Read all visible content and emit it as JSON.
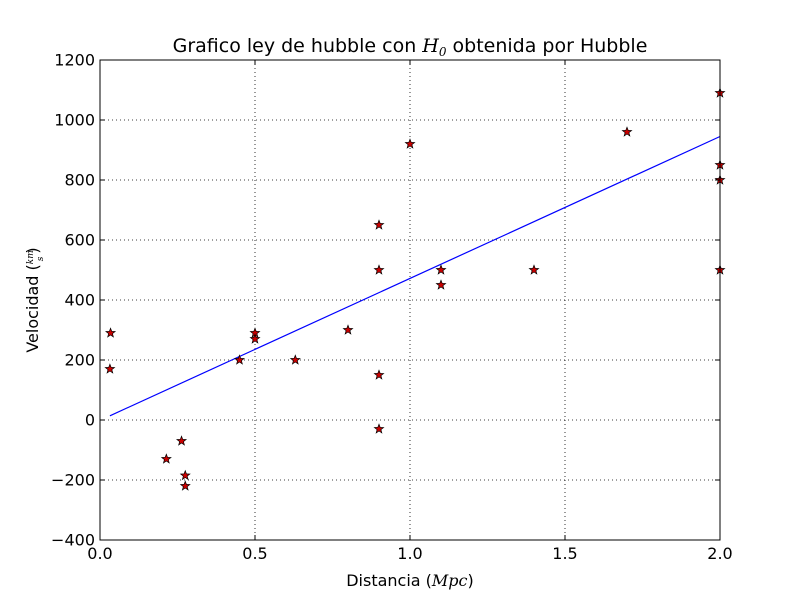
{
  "chart_data": {
    "type": "scatter",
    "title_prefix": "Grafico ley de hubble con ",
    "title_math": "H",
    "title_math_sub": "0",
    "title_suffix": " obtenida por Hubble",
    "xlabel_prefix": "Distancia (",
    "xlabel_math": "Mpc",
    "xlabel_suffix": ")",
    "ylabel_prefix": "Velocidad (",
    "ylabel_math_num": "km",
    "ylabel_math_den": "s",
    "ylabel_suffix": ")",
    "xlim": [
      0.0,
      2.0
    ],
    "ylim": [
      -400,
      1200
    ],
    "xticks": [
      0.0,
      0.5,
      1.0,
      1.5,
      2.0
    ],
    "xtick_labels": [
      "0.0",
      "0.5",
      "1.0",
      "1.5",
      "2.0"
    ],
    "yticks": [
      -400,
      -200,
      0,
      200,
      400,
      600,
      800,
      1000,
      1200
    ],
    "ytick_labels": [
      "−400",
      "−200",
      "0",
      "200",
      "400",
      "600",
      "800",
      "1000",
      "1200"
    ],
    "grid": true,
    "series": [
      {
        "kind": "scatter",
        "marker": "star",
        "color": "#cc0000",
        "edge_color": "#000000",
        "points": [
          [
            0.032,
            170
          ],
          [
            0.034,
            290
          ],
          [
            0.214,
            -130
          ],
          [
            0.263,
            -70
          ],
          [
            0.275,
            -185
          ],
          [
            0.275,
            -220
          ],
          [
            0.45,
            200
          ],
          [
            0.5,
            290
          ],
          [
            0.5,
            270
          ],
          [
            0.63,
            200
          ],
          [
            0.8,
            300
          ],
          [
            0.9,
            -30
          ],
          [
            0.9,
            650
          ],
          [
            0.9,
            150
          ],
          [
            0.9,
            500
          ],
          [
            1.0,
            920
          ],
          [
            1.1,
            450
          ],
          [
            1.1,
            500
          ],
          [
            1.4,
            500
          ],
          [
            1.7,
            960
          ],
          [
            2.0,
            500
          ],
          [
            2.0,
            850
          ],
          [
            2.0,
            800
          ],
          [
            2.0,
            1090
          ]
        ]
      },
      {
        "kind": "line",
        "color": "#0000ff",
        "points": [
          [
            0.032,
            14
          ],
          [
            2.0,
            945
          ]
        ]
      }
    ]
  }
}
